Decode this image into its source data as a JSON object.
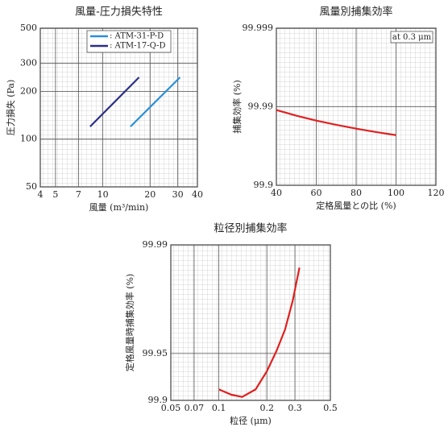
{
  "chart_data": [
    {
      "type": "line",
      "title": "風量-圧力損失特性",
      "xlabel": "風量 (m³/min)",
      "ylabel": "圧力損失 (Pa)",
      "xscale": "log",
      "yscale": "log",
      "xlim": [
        4,
        40
      ],
      "ylim": [
        50,
        500
      ],
      "xticks": [
        4,
        5,
        7,
        10,
        20,
        30,
        40
      ],
      "yticks": [
        50,
        100,
        200,
        300,
        500
      ],
      "grid": true,
      "legend": "top-left",
      "series": [
        {
          "name": ": ATM-31-P-D",
          "color": "#2a8fd8",
          "x": [
            15,
            31
          ],
          "values": [
            120,
            245
          ]
        },
        {
          "name": ": ATM-17-Q-D",
          "color": "#2b2f86",
          "x": [
            8.3,
            17
          ],
          "values": [
            120,
            245
          ]
        }
      ]
    },
    {
      "type": "line",
      "title": "風量別捕集効率",
      "xlabel": "定格風量との比 (%)",
      "ylabel": "捕集効率 (%)",
      "annotation": "at 0.3 μm",
      "xscale": "linear",
      "yscale": "log-complement",
      "xlim": [
        40,
        120
      ],
      "ylim": [
        99.9,
        99.999
      ],
      "xticks": [
        40,
        60,
        80,
        100,
        120
      ],
      "yticks": [
        99.9,
        99.99,
        99.999
      ],
      "grid": true,
      "series": [
        {
          "color": "#e02020",
          "x": [
            40,
            50,
            60,
            70,
            80,
            90,
            100
          ],
          "values": [
            99.989,
            99.987,
            99.985,
            99.983,
            99.981,
            99.979,
            99.977
          ]
        }
      ]
    },
    {
      "type": "line",
      "title": "粒径別捕集効率",
      "xlabel": "粒径 (μm)",
      "ylabel": "定格風量時捕集効率 (%)",
      "xscale": "log",
      "yscale": "log-complement",
      "xlim": [
        0.05,
        0.5
      ],
      "ylim": [
        99.9,
        99.99
      ],
      "xticks": [
        0.05,
        0.07,
        0.1,
        0.2,
        0.3,
        0.5
      ],
      "yticks": [
        99.9,
        99.95,
        99.99
      ],
      "grid": true,
      "series": [
        {
          "color": "#e02020",
          "x": [
            0.1,
            0.12,
            0.14,
            0.17,
            0.2,
            0.23,
            0.26,
            0.29,
            0.32
          ],
          "values": [
            99.915,
            99.908,
            99.905,
            99.915,
            99.935,
            99.952,
            99.965,
            99.977,
            99.986
          ]
        }
      ]
    }
  ]
}
